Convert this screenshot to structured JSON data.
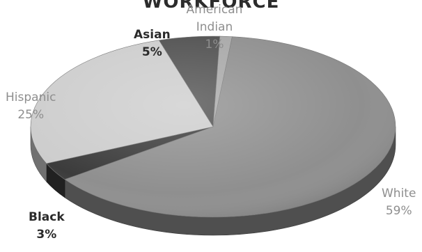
{
  "chart_data": {
    "type": "pie",
    "style": "3d-grayscale",
    "title": "WORKFORCE",
    "slices": [
      {
        "name": "White",
        "value": 59,
        "label": "59%",
        "color": "#8f8f8f"
      },
      {
        "name": "Black",
        "value": 3,
        "label": "3%",
        "color": "#3c3c3c"
      },
      {
        "name": "Hispanic",
        "value": 25,
        "label": "25%",
        "color": "#cdcdcd"
      },
      {
        "name": "Asian",
        "value": 5,
        "label": "5%",
        "color": "#505050"
      },
      {
        "name": "American Indian",
        "value": 1,
        "label": "1%",
        "color": "#a8a8a8"
      }
    ]
  }
}
